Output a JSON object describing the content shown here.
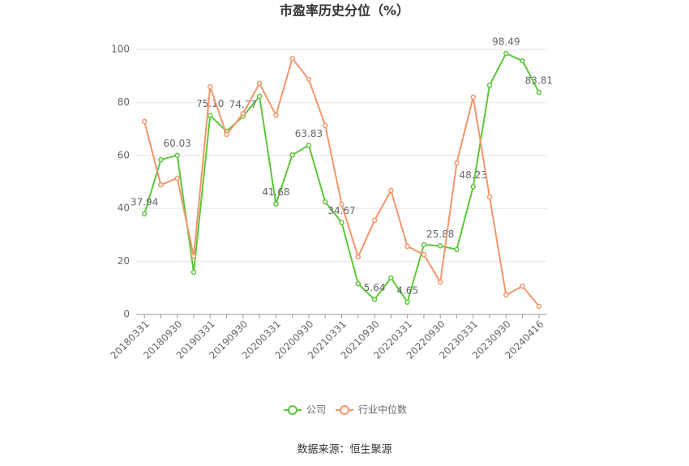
{
  "chart_data": {
    "type": "line",
    "title": "市盈率历史分位（%）",
    "categories": [
      "20180331",
      null,
      "20180930",
      null,
      "20190331",
      null,
      "20190930",
      null,
      "20200331",
      null,
      "20200930",
      null,
      "20210331",
      null,
      "20210930",
      null,
      "20220331",
      null,
      "20220930",
      null,
      "20230331",
      null,
      "20230930",
      null,
      "20240416"
    ],
    "series": [
      {
        "name": "公司",
        "color": "#5cc63a",
        "values": [
          37.94,
          58.4,
          60.03,
          15.9,
          75.1,
          69.1,
          74.77,
          82.3,
          41.68,
          60.2,
          63.83,
          42.5,
          34.67,
          11.6,
          5.64,
          13.8,
          4.65,
          26.3,
          25.88,
          24.5,
          48.23,
          86.5,
          98.49,
          95.7,
          83.81
        ],
        "value_labels": [
          "37.94",
          null,
          "60.03",
          null,
          "75.10",
          null,
          "74.77",
          null,
          "41.68",
          null,
          "63.83",
          null,
          "34.67",
          null,
          "5.64",
          null,
          "4.65",
          null,
          "25.88",
          null,
          "48.23",
          null,
          "98.49",
          null,
          "83.81"
        ]
      },
      {
        "name": "行业中位数",
        "color": "#f4956a",
        "values": [
          72.8,
          48.9,
          51.4,
          22.0,
          85.9,
          67.9,
          75.8,
          87.2,
          75.2,
          96.6,
          88.7,
          71.3,
          41.6,
          21.7,
          35.5,
          46.8,
          25.7,
          22.6,
          12.2,
          57.2,
          82.0,
          44.3,
          7.3,
          10.7,
          3.1
        ]
      }
    ],
    "ylim": [
      0,
      100
    ],
    "yticks": [
      0,
      20,
      40,
      60,
      80,
      100
    ],
    "grid": true,
    "legend": "bottom",
    "source": "数据来源：恒生聚源"
  }
}
